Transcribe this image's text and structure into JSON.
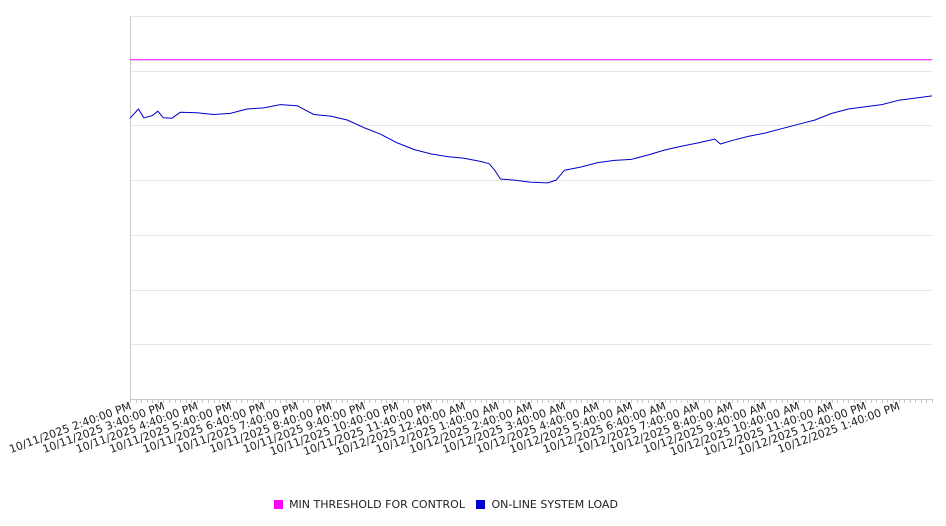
{
  "chart_data": {
    "type": "line",
    "colors": {
      "threshold": "#ff00ff",
      "load": "#0000cc",
      "grid": "#e6e6e6",
      "axis": "#c8c8c8"
    },
    "grid": true,
    "legend_position": "bottom-center",
    "x_tick_labels": [
      "10/11/2025 2:40:00 PM",
      "10/11/2025 3:40:00 PM",
      "10/11/2025 4:40:00 PM",
      "10/11/2025 5:40:00 PM",
      "10/11/2025 6:40:00 PM",
      "10/11/2025 7:40:00 PM",
      "10/11/2025 8:40:00 PM",
      "10/11/2025 9:40:00 PM",
      "10/11/2025 10:40:00 PM",
      "10/11/2025 11:40:00 PM",
      "10/12/2025 12:40:00 AM",
      "10/12/2025 1:40:00 AM",
      "10/12/2025 2:40:00 AM",
      "10/12/2025 3:40:00 AM",
      "10/12/2025 4:40:00 AM",
      "10/12/2025 5:40:00 AM",
      "10/12/2025 6:40:00 AM",
      "10/12/2025 7:40:00 AM",
      "10/12/2025 8:40:00 AM",
      "10/12/2025 9:40:00 AM",
      "10/12/2025 10:40:00 AM",
      "10/12/2025 11:40:00 AM",
      "10/12/2025 12:40:00 PM",
      "10/12/2025 1:40:00 PM"
    ],
    "x_range": [
      "10/11/2025 2:40:00 PM",
      "10/12/2025 2:40:00 PM"
    ],
    "series": [
      {
        "name": "MIN THRESHOLD FOR CONTROL",
        "color": "#ff00ff",
        "points": [
          [
            "10/11/2025 2:40:00 PM",
            6.2
          ],
          [
            "10/12/2025 2:40:00 PM",
            6.2
          ]
        ]
      },
      {
        "name": "ON-LINE SYSTEM LOAD",
        "color": "#0000cc",
        "points": [
          [
            "10/11/2025 2:40:00 PM",
            5.13
          ],
          [
            "10/11/2025 2:55:00 PM",
            5.3
          ],
          [
            "10/11/2025 3:05:00 PM",
            5.14
          ],
          [
            "10/11/2025 3:20:00 PM",
            5.18
          ],
          [
            "10/11/2025 3:30:00 PM",
            5.26
          ],
          [
            "10/11/2025 3:40:00 PM",
            5.14
          ],
          [
            "10/11/2025 3:55:00 PM",
            5.13
          ],
          [
            "10/11/2025 4:10:00 PM",
            5.24
          ],
          [
            "10/11/2025 4:40:00 PM",
            5.23
          ],
          [
            "10/11/2025 5:10:00 PM",
            5.2
          ],
          [
            "10/11/2025 5:40:00 PM",
            5.22
          ],
          [
            "10/11/2025 6:10:00 PM",
            5.3
          ],
          [
            "10/11/2025 6:40:00 PM",
            5.32
          ],
          [
            "10/11/2025 7:10:00 PM",
            5.38
          ],
          [
            "10/11/2025 7:40:00 PM",
            5.36
          ],
          [
            "10/11/2025 8:10:00 PM",
            5.2
          ],
          [
            "10/11/2025 8:40:00 PM",
            5.17
          ],
          [
            "10/11/2025 9:10:00 PM",
            5.1
          ],
          [
            "10/11/2025 9:40:00 PM",
            4.96
          ],
          [
            "10/11/2025 10:10:00 PM",
            4.84
          ],
          [
            "10/11/2025 10:40:00 PM",
            4.68
          ],
          [
            "10/11/2025 11:10:00 PM",
            4.56
          ],
          [
            "10/11/2025 11:40:00 PM",
            4.48
          ],
          [
            "10/12/2025 12:10:00 AM",
            4.43
          ],
          [
            "10/12/2025 12:40:00 AM",
            4.4
          ],
          [
            "10/12/2025 1:10:00 AM",
            4.34
          ],
          [
            "10/12/2025 1:25:00 AM",
            4.3
          ],
          [
            "10/12/2025 1:35:00 AM",
            4.18
          ],
          [
            "10/12/2025 1:45:00 AM",
            4.02
          ],
          [
            "10/12/2025 2:10:00 AM",
            4.0
          ],
          [
            "10/12/2025 2:40:00 AM",
            3.96
          ],
          [
            "10/12/2025 3:10:00 AM",
            3.95
          ],
          [
            "10/12/2025 3:25:00 AM",
            4.0
          ],
          [
            "10/12/2025 3:40:00 AM",
            4.18
          ],
          [
            "10/12/2025 4:10:00 AM",
            4.24
          ],
          [
            "10/12/2025 4:40:00 AM",
            4.32
          ],
          [
            "10/12/2025 5:10:00 AM",
            4.36
          ],
          [
            "10/12/2025 5:40:00 AM",
            4.38
          ],
          [
            "10/12/2025 6:10:00 AM",
            4.46
          ],
          [
            "10/12/2025 6:40:00 AM",
            4.55
          ],
          [
            "10/12/2025 7:10:00 AM",
            4.62
          ],
          [
            "10/12/2025 7:40:00 AM",
            4.68
          ],
          [
            "10/12/2025 8:10:00 AM",
            4.75
          ],
          [
            "10/12/2025 8:20:00 AM",
            4.66
          ],
          [
            "10/12/2025 8:40:00 AM",
            4.72
          ],
          [
            "10/12/2025 9:10:00 AM",
            4.8
          ],
          [
            "10/12/2025 9:40:00 AM",
            4.86
          ],
          [
            "10/12/2025 10:10:00 AM",
            4.94
          ],
          [
            "10/12/2025 10:40:00 AM",
            5.02
          ],
          [
            "10/12/2025 11:10:00 AM",
            5.1
          ],
          [
            "10/12/2025 11:40:00 AM",
            5.22
          ],
          [
            "10/12/2025 12:10:00 PM",
            5.3
          ],
          [
            "10/12/2025 12:40:00 PM",
            5.34
          ],
          [
            "10/12/2025 1:10:00 PM",
            5.38
          ],
          [
            "10/12/2025 1:40:00 PM",
            5.46
          ],
          [
            "10/12/2025 2:10:00 PM",
            5.5
          ],
          [
            "10/12/2025 2:40:00 PM",
            5.54
          ]
        ]
      }
    ]
  }
}
